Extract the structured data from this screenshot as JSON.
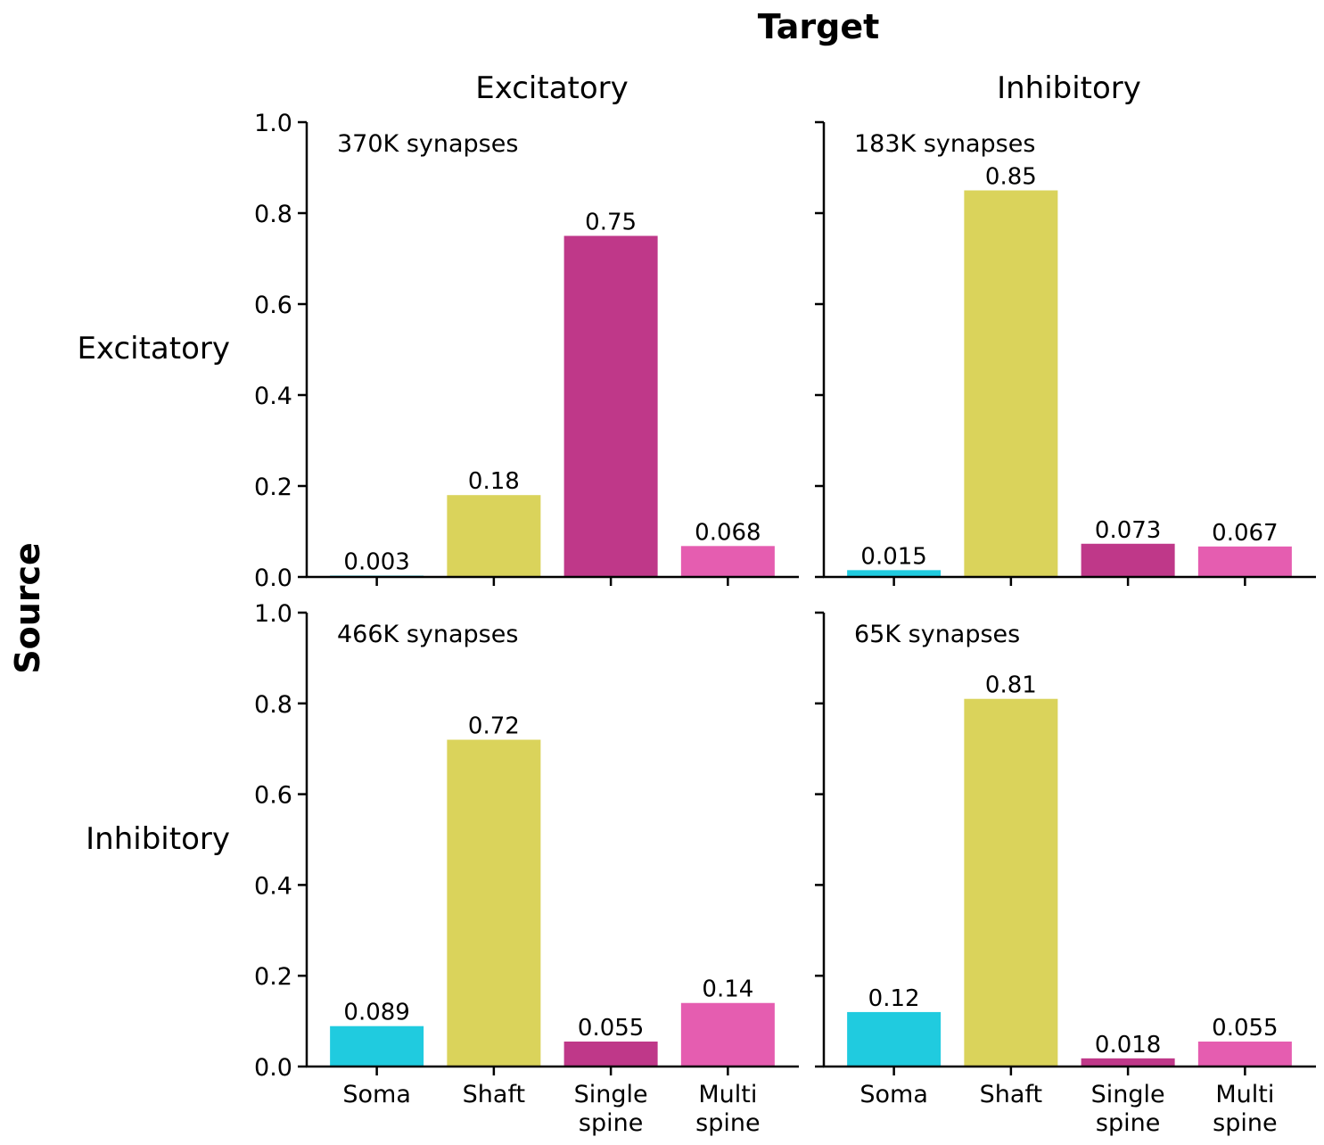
{
  "figure": {
    "x_title": "Target",
    "y_title": "Source",
    "col_titles": [
      "Excitatory",
      "Inhibitory"
    ],
    "row_titles": [
      "Excitatory",
      "Inhibitory"
    ]
  },
  "colors": {
    "Soma": "#20cbdf",
    "Shaft": "#dad35b",
    "Single spine": "#bf3889",
    "Multi spine": "#e55db0"
  },
  "chart_data": [
    {
      "type": "bar",
      "source": "Excitatory",
      "target": "Excitatory",
      "annotation": "370K synapses",
      "categories": [
        "Soma",
        "Shaft",
        "Single spine",
        "Multi spine"
      ],
      "values": [
        0.003,
        0.18,
        0.75,
        0.068
      ],
      "labels": [
        "0.003",
        "0.18",
        "0.75",
        "0.068"
      ],
      "ylim": [
        0,
        1.0
      ],
      "yticks": [
        "0.0",
        "0.2",
        "0.4",
        "0.6",
        "0.8",
        "1.0"
      ]
    },
    {
      "type": "bar",
      "source": "Excitatory",
      "target": "Inhibitory",
      "annotation": "183K synapses",
      "categories": [
        "Soma",
        "Shaft",
        "Single spine",
        "Multi spine"
      ],
      "values": [
        0.015,
        0.85,
        0.073,
        0.067
      ],
      "labels": [
        "0.015",
        "0.85",
        "0.073",
        "0.067"
      ],
      "ylim": [
        0,
        1.0
      ],
      "yticks": []
    },
    {
      "type": "bar",
      "source": "Inhibitory",
      "target": "Excitatory",
      "annotation": "466K synapses",
      "categories": [
        "Soma",
        "Shaft",
        "Single spine",
        "Multi spine"
      ],
      "values": [
        0.089,
        0.72,
        0.055,
        0.14
      ],
      "labels": [
        "0.089",
        "0.72",
        "0.055",
        "0.14"
      ],
      "ylim": [
        0,
        1.0
      ],
      "yticks": [
        "0.0",
        "0.2",
        "0.4",
        "0.6",
        "0.8",
        "1.0"
      ]
    },
    {
      "type": "bar",
      "source": "Inhibitory",
      "target": "Inhibitory",
      "annotation": "65K synapses",
      "categories": [
        "Soma",
        "Shaft",
        "Single spine",
        "Multi spine"
      ],
      "values": [
        0.12,
        0.81,
        0.018,
        0.055
      ],
      "labels": [
        "0.12",
        "0.81",
        "0.018",
        "0.055"
      ],
      "ylim": [
        0,
        1.0
      ],
      "yticks": []
    }
  ],
  "xtick_labels": [
    [
      "Soma"
    ],
    [
      "Shaft"
    ],
    [
      "Single",
      "spine"
    ],
    [
      "Multi",
      "spine"
    ]
  ]
}
